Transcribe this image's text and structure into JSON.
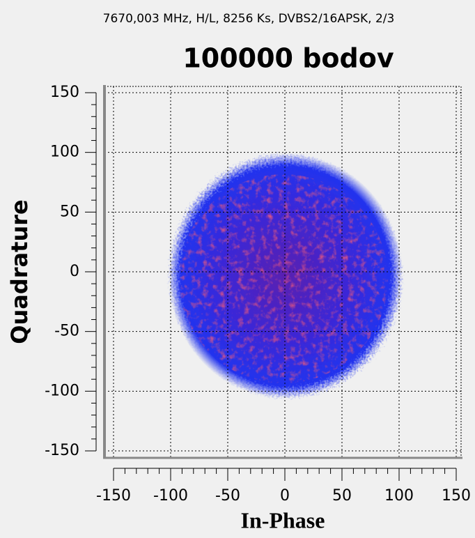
{
  "chart_data": {
    "type": "scatter",
    "subtitle": "7670,003 MHz, H/L, 8256 Ks, DVBS2/16APSK, 2/3",
    "title": "100000 bodov",
    "x_label": "In-Phase",
    "y_label": "Quadrature",
    "xlim": [
      -150,
      150
    ],
    "ylim": [
      -150,
      150
    ],
    "xticks": [
      -150,
      -100,
      -50,
      0,
      50,
      100,
      150
    ],
    "yticks": [
      -150,
      -100,
      -50,
      0,
      50,
      100,
      150
    ],
    "grid": true
  }
}
